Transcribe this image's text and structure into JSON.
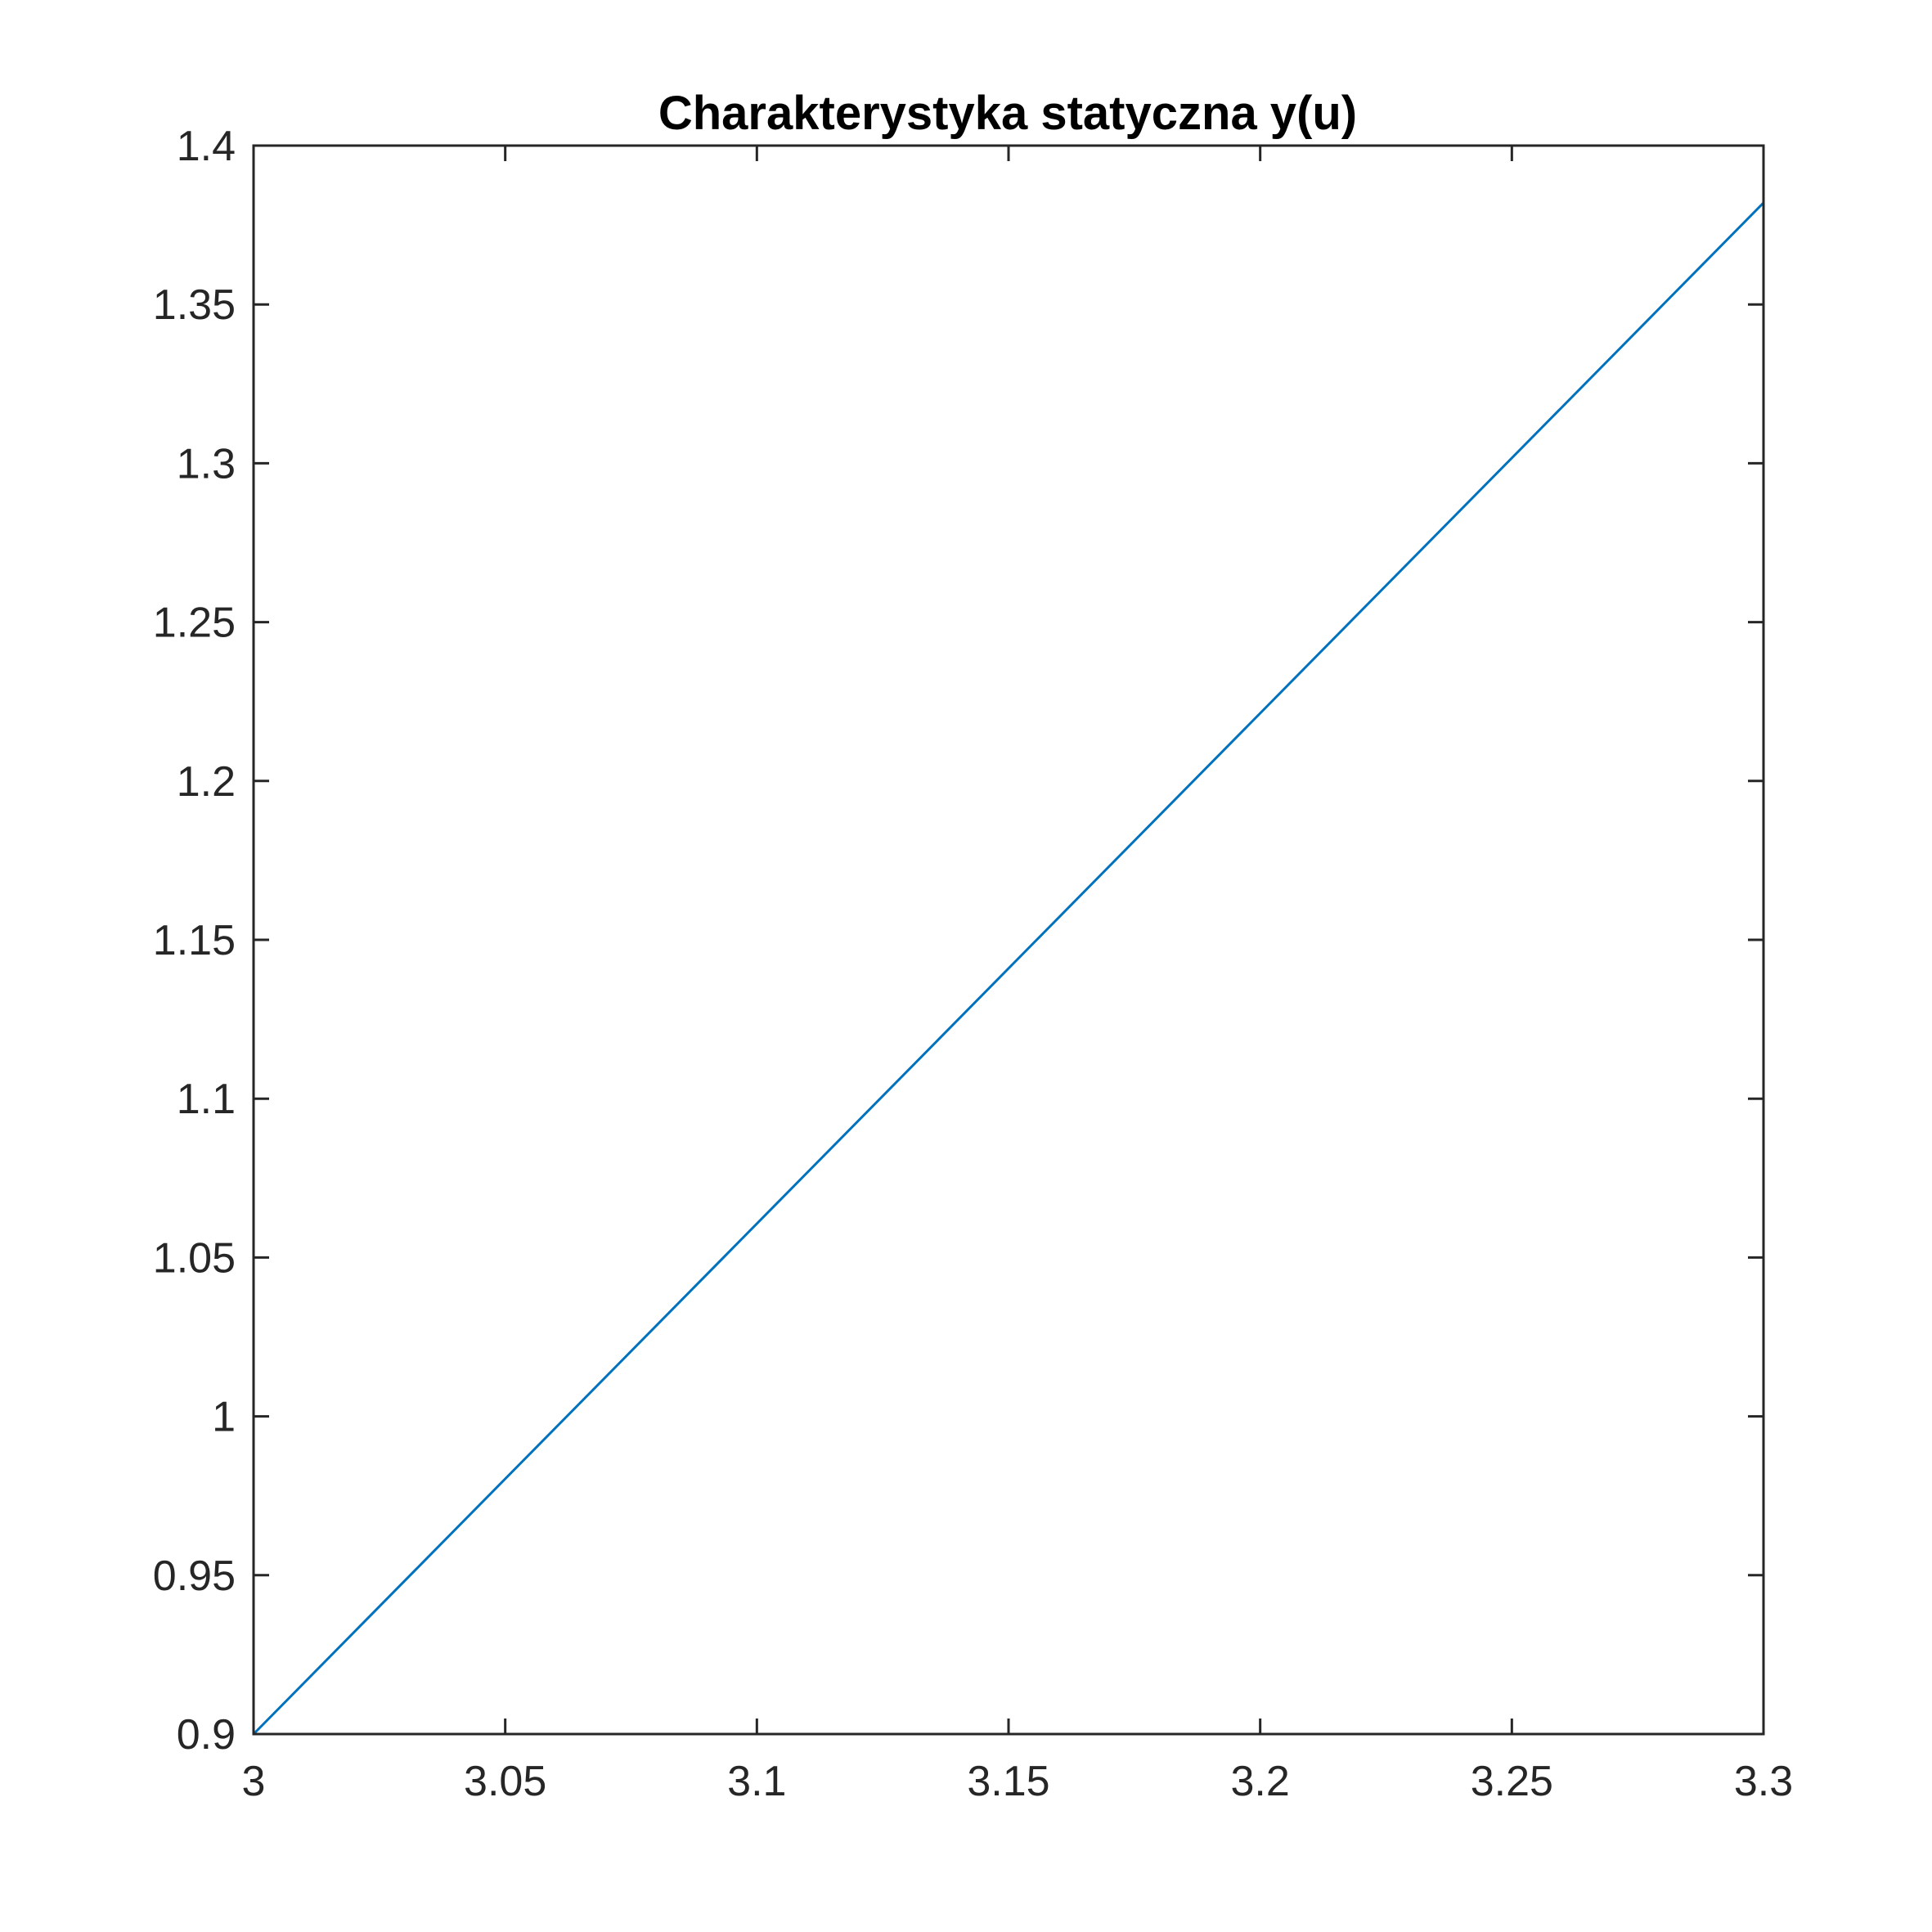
{
  "chart_data": {
    "type": "line",
    "title": "Charakterystyka statyczna y(u)",
    "xlabel": "",
    "ylabel": "",
    "xlim": [
      3,
      3.3
    ],
    "ylim": [
      0.9,
      1.4
    ],
    "x_ticks": [
      3,
      3.05,
      3.1,
      3.15,
      3.2,
      3.25,
      3.3
    ],
    "x_tick_labels": [
      "3",
      "3.05",
      "3.1",
      "3.15",
      "3.2",
      "3.25",
      "3.3"
    ],
    "y_ticks": [
      0.9,
      0.95,
      1,
      1.05,
      1.1,
      1.15,
      1.2,
      1.25,
      1.3,
      1.35,
      1.4
    ],
    "y_tick_labels": [
      "0.9",
      "0.95",
      "1",
      "1.05",
      "1.1",
      "1.15",
      "1.2",
      "1.25",
      "1.3",
      "1.35",
      "1.4"
    ],
    "grid": false,
    "legend": "none",
    "series": [
      {
        "color": "#0072BD",
        "x": [
          3,
          3.3
        ],
        "y": [
          0.9,
          1.382
        ]
      }
    ]
  }
}
